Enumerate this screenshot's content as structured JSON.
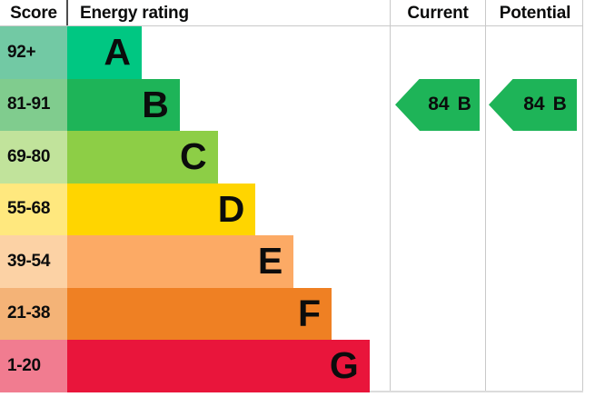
{
  "header": {
    "score": "Score",
    "energy_rating": "Energy rating",
    "current": "Current",
    "potential": "Potential"
  },
  "bands": [
    {
      "score": "92+",
      "letter": "A",
      "color": "#00C782",
      "tint": "#72C9A4"
    },
    {
      "score": "81-91",
      "letter": "B",
      "color": "#1EB458",
      "tint": "#80CC8E"
    },
    {
      "score": "69-80",
      "letter": "C",
      "color": "#8DCE46",
      "tint": "#C1E39B"
    },
    {
      "score": "55-68",
      "letter": "D",
      "color": "#FFD500",
      "tint": "#FFE87E"
    },
    {
      "score": "39-54",
      "letter": "E",
      "color": "#FCAA65",
      "tint": "#FCD2A5"
    },
    {
      "score": "21-38",
      "letter": "F",
      "color": "#EF8023",
      "tint": "#F4B377"
    },
    {
      "score": "1-20",
      "letter": "G",
      "color": "#E9153B",
      "tint": "#F17C90"
    }
  ],
  "current": {
    "value": "84",
    "letter": "B",
    "band_index": 1,
    "color": "#1EB458"
  },
  "potential": {
    "value": "84",
    "letter": "B",
    "band_index": 1,
    "color": "#1EB458"
  },
  "chart_data": {
    "type": "bar",
    "title": "Energy rating",
    "categories": [
      "A",
      "B",
      "C",
      "D",
      "E",
      "F",
      "G"
    ],
    "score_ranges": [
      "92+",
      "81-91",
      "69-80",
      "55-68",
      "39-54",
      "21-38",
      "1-20"
    ],
    "band_colors": [
      "#00C782",
      "#1EB458",
      "#8DCE46",
      "#FFD500",
      "#FCAA65",
      "#EF8023",
      "#E9153B"
    ],
    "columns": [
      "Score",
      "Energy rating",
      "Current",
      "Potential"
    ],
    "current": {
      "score": 84,
      "band": "B"
    },
    "potential": {
      "score": 84,
      "band": "B"
    },
    "legend_position": "none",
    "grid": false
  }
}
